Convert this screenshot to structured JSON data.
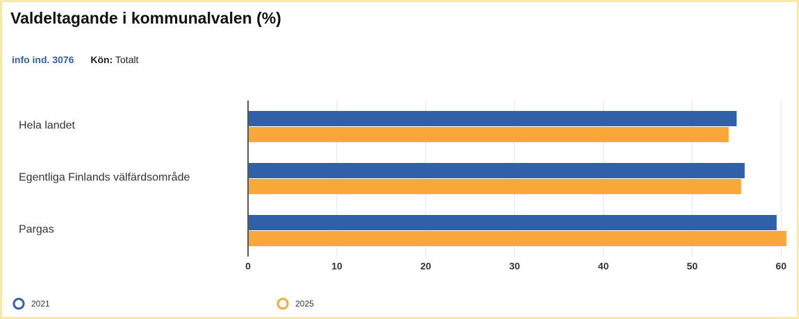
{
  "header": {
    "title": "Valdeltagande i kommunalvalen (%)",
    "info": "info ind. 3076",
    "filter_label": "Kön:",
    "filter_value": "Totalt"
  },
  "chart_data": {
    "type": "bar",
    "orientation": "horizontal",
    "categories": [
      "Hela landet",
      "Egentliga Finlands välfärdsområde",
      "Pargas"
    ],
    "series": [
      {
        "name": "2021",
        "color": "#3060a8",
        "values": [
          55.0,
          55.9,
          59.5
        ]
      },
      {
        "name": "2025",
        "color": "#f8a838",
        "values": [
          54.1,
          55.5,
          60.6
        ]
      }
    ],
    "xlim": [
      0,
      61
    ],
    "xticks": [
      0,
      10,
      20,
      30,
      40,
      50,
      60
    ],
    "grid": true,
    "legend": "bottom-left"
  }
}
